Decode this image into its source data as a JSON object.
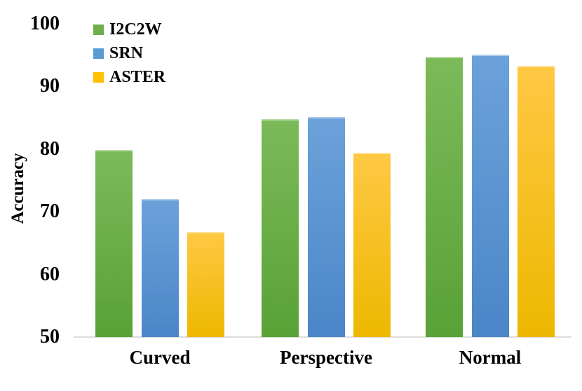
{
  "chart_data": {
    "type": "bar",
    "ylabel": "Accuracy",
    "categories": [
      "Curved",
      "Perspective",
      "Normal"
    ],
    "series": [
      {
        "name": "I2C2W",
        "values": [
          79.8,
          84.8,
          94.7
        ],
        "color": "#6fae4c",
        "gradient_top": "#7cba59",
        "gradient_bottom": "#58a236"
      },
      {
        "name": "SRN",
        "values": [
          72.0,
          85.1,
          95.0
        ],
        "color": "#5b9bd5",
        "gradient_top": "#6ca2da",
        "gradient_bottom": "#4a86c8"
      },
      {
        "name": "ASTER",
        "values": [
          66.8,
          79.4,
          93.2
        ],
        "color": "#ffc103",
        "gradient_top": "#ffc845",
        "gradient_bottom": "#edb800"
      }
    ],
    "yticks": [
      50,
      60,
      70,
      80,
      90,
      100
    ],
    "ylim": [
      50,
      100
    ],
    "legend_position": "top-left",
    "grid": false,
    "axis_line_color": "#dcdcdc",
    "text_color": "#000000"
  }
}
